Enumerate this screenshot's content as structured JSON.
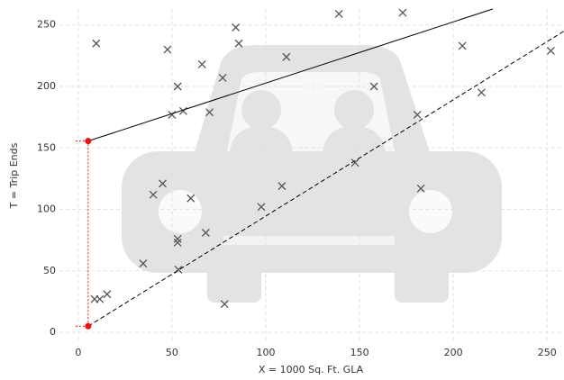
{
  "chart_data": {
    "type": "scatter",
    "x_label": "X = 1000 Sq. Ft. GLA",
    "y_label": "T = Trip Ends",
    "xlim": [
      -10,
      259
    ],
    "ylim": [
      -8,
      263
    ],
    "xticks": [
      0,
      50,
      100,
      150,
      200,
      250
    ],
    "yticks": [
      0,
      50,
      100,
      150,
      200,
      250
    ],
    "grid": true,
    "series": [
      {
        "color": "#555555",
        "style": "cross",
        "x": [
          8.7,
          11.5,
          15.4,
          9.6,
          34.6,
          40,
          45,
          47.6,
          53,
          50,
          56,
          53,
          53,
          53.4,
          60,
          66,
          68,
          70,
          77,
          78,
          84,
          85.6,
          97.6,
          108.6,
          111,
          139,
          147.6,
          157.7,
          173,
          180.8,
          182.7,
          204.8,
          215,
          252
        ],
        "values": [
          27,
          27,
          31,
          235,
          56,
          112,
          121,
          230,
          200,
          177,
          180,
          73,
          76,
          51,
          109,
          218,
          81,
          179,
          207,
          23,
          248,
          235,
          102,
          119,
          224,
          259,
          138,
          200,
          260,
          177,
          117,
          233,
          195,
          229
        ]
      },
      {
        "color": "#000000",
        "style": "solid",
        "x": [
          5.3,
          221
        ],
        "values": [
          155.6,
          263
        ]
      },
      {
        "color": "#000000",
        "style": "dashed",
        "x": [
          5.3,
          259
        ],
        "values": [
          5,
          245
        ]
      },
      {
        "color": "#ee1111",
        "style": "dotted",
        "x": [
          5.3,
          5.3
        ],
        "values": [
          5,
          155.6
        ]
      }
    ]
  }
}
